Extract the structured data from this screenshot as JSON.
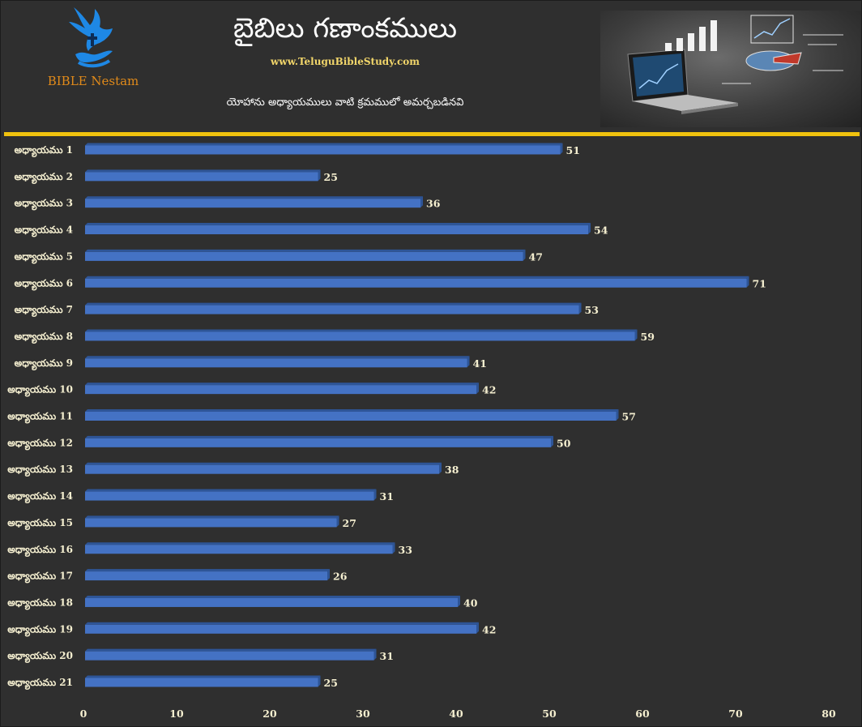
{
  "header": {
    "logo_text": "BIBLE Nestam",
    "title": "బైబిలు గణాంకములు",
    "website": "www.TeluguBibleStudy.com",
    "subtitle": "యోహాను అధ్యాయములు వాటి క్రమములో అమర్చబడినవి"
  },
  "colors": {
    "background": "#2f2f2f",
    "bar": "#4472c4",
    "bar_top": "#2e5597",
    "accent_line": "#f0c20e",
    "label_text": "#f5efd0",
    "logo_blue": "#1e88e5",
    "logo_text": "#e08a1a"
  },
  "chart_data": {
    "type": "bar",
    "orientation": "horizontal",
    "categories": [
      "అధ్యాయము 1",
      "అధ్యాయము 2",
      "అధ్యాయము 3",
      "అధ్యాయము 4",
      "అధ్యాయము 5",
      "అధ్యాయము 6",
      "అధ్యాయము 7",
      "అధ్యాయము 8",
      "అధ్యాయము 9",
      "అధ్యాయము 10",
      "అధ్యాయము 11",
      "అధ్యాయము 12",
      "అధ్యాయము 13",
      "అధ్యాయము 14",
      "అధ్యాయము 15",
      "అధ్యాయము 16",
      "అధ్యాయము 17",
      "అధ్యాయము 18",
      "అధ్యాయము 19",
      "అధ్యాయము 20",
      "అధ్యాయము 21"
    ],
    "values": [
      51,
      25,
      36,
      54,
      47,
      71,
      53,
      59,
      41,
      42,
      57,
      50,
      38,
      31,
      27,
      33,
      26,
      40,
      42,
      31,
      25
    ],
    "xlim": [
      0,
      80
    ],
    "xticks": [
      0,
      10,
      20,
      30,
      40,
      50,
      60,
      70,
      80
    ],
    "data_labels": true,
    "grid": false,
    "legend": false
  }
}
